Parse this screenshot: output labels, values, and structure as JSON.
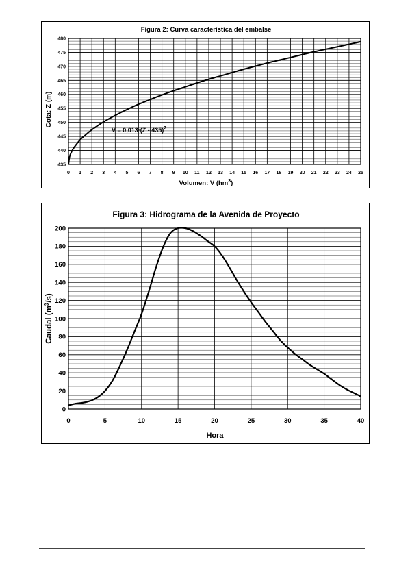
{
  "colors": {
    "line": "#000000",
    "grid": "#000000",
    "background": "#ffffff"
  },
  "chart_data": [
    {
      "type": "line",
      "title": "Figura 2: Curva característica del embalse",
      "xlabel": "Volumen: V (hm3)",
      "xlabel_parts": {
        "main": "Volumen: V (hm",
        "sup": "3",
        "end": ")"
      },
      "ylabel": "Cota: Z (m)",
      "annotation": {
        "text": "V = 0,013·(Z - 435)",
        "sup": "2"
      },
      "xlim": [
        0,
        25
      ],
      "ylim": [
        435,
        480
      ],
      "xticks": [
        0,
        1,
        2,
        3,
        4,
        5,
        6,
        7,
        8,
        9,
        10,
        11,
        12,
        13,
        14,
        15,
        16,
        17,
        18,
        19,
        20,
        21,
        22,
        23,
        24,
        25
      ],
      "yticks": [
        435,
        440,
        445,
        450,
        455,
        460,
        465,
        470,
        475,
        480
      ],
      "grid": true,
      "series": [
        {
          "x": [
            0,
            0.1,
            0.3,
            0.5,
            1,
            1.5,
            2,
            3,
            4,
            5,
            6,
            7,
            8,
            9,
            10,
            11,
            12,
            13,
            14,
            15,
            16,
            17,
            18,
            19,
            20,
            21,
            22,
            23,
            24,
            25
          ],
          "y": [
            435,
            437.8,
            439.8,
            441.2,
            443.8,
            445.7,
            447.4,
            450.2,
            452.5,
            454.6,
            456.5,
            458.2,
            459.8,
            461.3,
            462.7,
            464.1,
            465.4,
            466.6,
            467.8,
            469.0,
            470.1,
            471.2,
            472.2,
            473.2,
            474.2,
            475.2,
            476.1,
            477.0,
            477.9,
            478.8
          ]
        }
      ]
    },
    {
      "type": "line",
      "title": "Figura 3: Hidrograma de la Avenida de Proyecto",
      "xlabel": "Hora",
      "ylabel": "Caudal (m3/s)",
      "ylabel_parts": {
        "main": "Caudal (m",
        "sup": "3",
        "end": "/s)"
      },
      "xlim": [
        0,
        40
      ],
      "ylim": [
        0,
        200
      ],
      "xticks": [
        0,
        5,
        10,
        15,
        20,
        25,
        30,
        35,
        40
      ],
      "yticks": [
        0,
        20,
        40,
        60,
        80,
        100,
        120,
        140,
        160,
        180,
        200
      ],
      "grid": true,
      "series": [
        {
          "x": [
            0,
            1,
            2,
            3,
            4,
            5,
            6,
            7,
            8,
            9,
            10,
            11,
            12,
            13,
            14,
            15,
            16,
            17,
            18,
            19,
            20,
            21,
            22,
            23,
            24,
            25,
            26,
            27,
            28,
            29,
            30,
            31,
            32,
            33,
            34,
            35,
            36,
            37,
            38,
            39,
            40
          ],
          "y": [
            4,
            6,
            7,
            9,
            13,
            20,
            31,
            47,
            65,
            85,
            105,
            130,
            157,
            180,
            195,
            200,
            200,
            197,
            192,
            186,
            180,
            170,
            157,
            143,
            130,
            118,
            107,
            96,
            86,
            76,
            68,
            61,
            55,
            49,
            44,
            39,
            33,
            27,
            22,
            18,
            14
          ]
        }
      ]
    }
  ]
}
